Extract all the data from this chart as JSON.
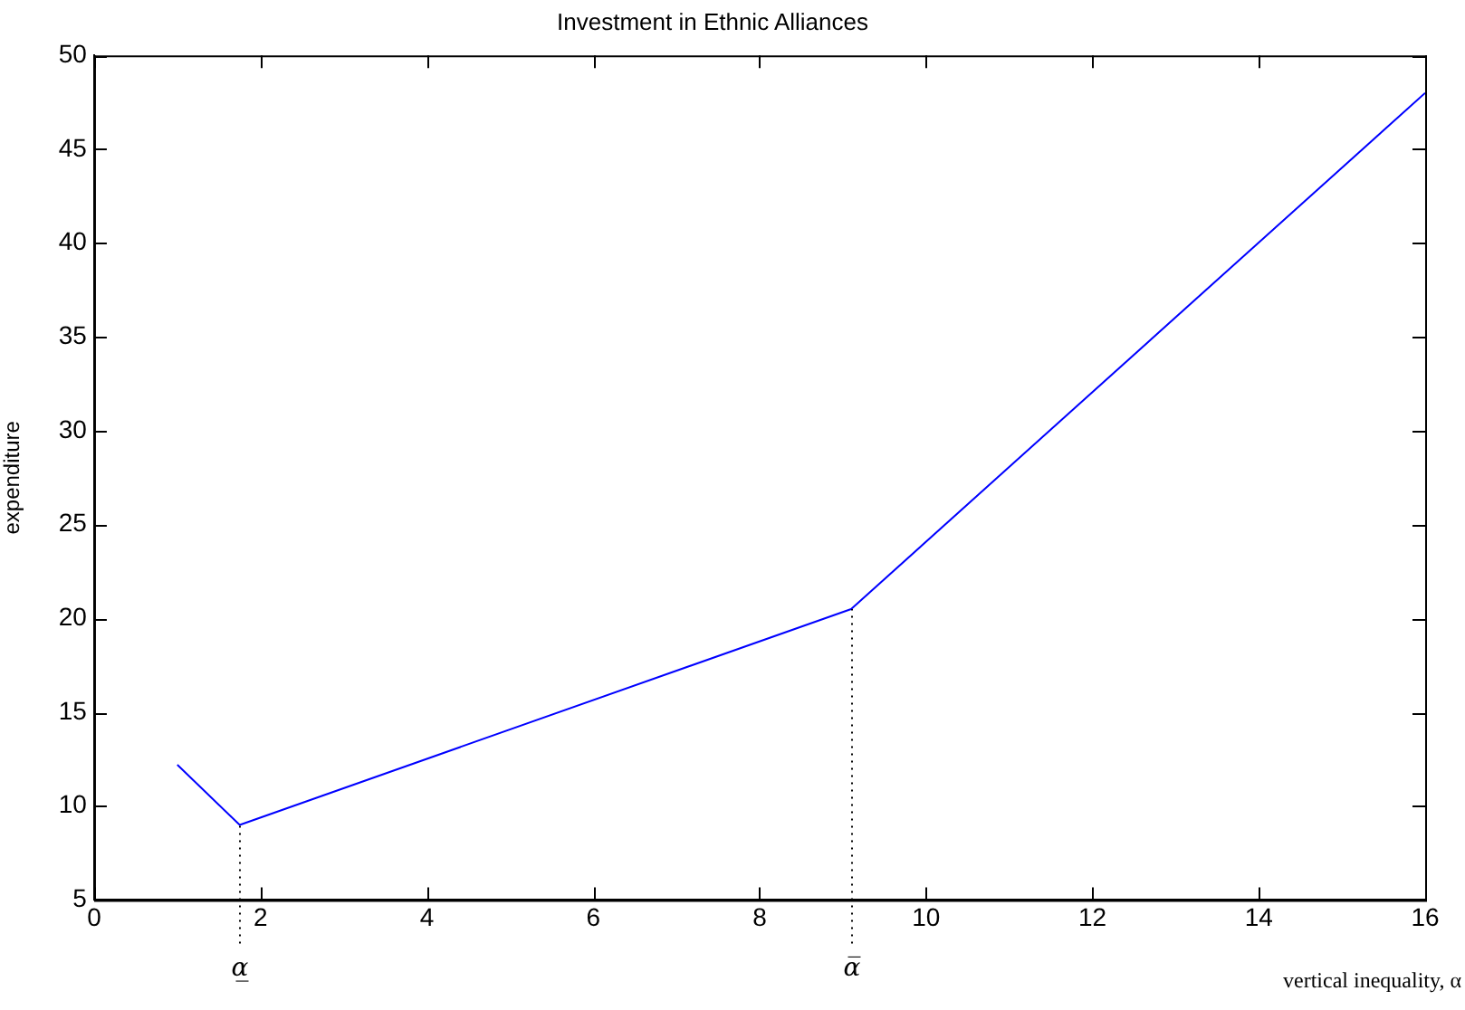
{
  "chart_data": {
    "type": "line",
    "title": "Investment in Ethnic Alliances",
    "xlabel": "vertical inequality, α",
    "ylabel": "expenditure",
    "x": [
      1,
      1.75,
      9.1,
      16
    ],
    "series": [
      {
        "color": "#0000ff",
        "values": [
          12.2,
          9,
          20.5,
          48
        ]
      }
    ],
    "xlim": [
      0,
      16
    ],
    "xticks": [
      0,
      2,
      4,
      6,
      8,
      10,
      12,
      14,
      16
    ],
    "ylim": [
      5,
      50
    ],
    "yticks": [
      5,
      10,
      15,
      20,
      25,
      30,
      35,
      40,
      45,
      50
    ],
    "ref_lines": [
      {
        "axis": "x",
        "value": 1.75,
        "label": "α̲",
        "line_style": "dotted",
        "color": "#000000"
      },
      {
        "axis": "x",
        "value": 9.1,
        "label": "α̅",
        "line_style": "dotted",
        "color": "#000000"
      }
    ],
    "grid": false,
    "legend": false,
    "marker": "none",
    "line_style": "solid"
  }
}
